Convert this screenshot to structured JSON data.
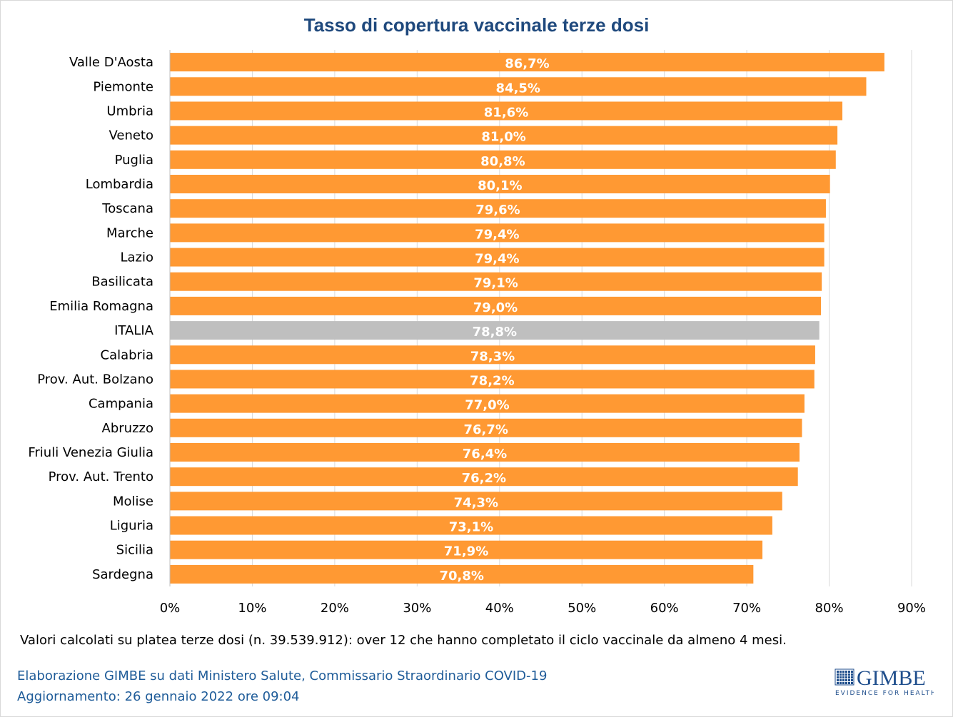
{
  "chart_data": {
    "type": "bar",
    "orientation": "horizontal",
    "title": "Tasso di copertura vaccinale terze dosi",
    "categories": [
      "Valle D'Aosta",
      "Piemonte",
      "Umbria",
      "Veneto",
      "Puglia",
      "Lombardia",
      "Toscana",
      "Marche",
      "Lazio",
      "Basilicata",
      "Emilia Romagna",
      "ITALIA",
      "Calabria",
      "Prov. Aut. Bolzano",
      "Campania",
      "Abruzzo",
      "Friuli Venezia Giulia",
      "Prov. Aut. Trento",
      "Molise",
      "Liguria",
      "Sicilia",
      "Sardegna"
    ],
    "values": [
      86.7,
      84.5,
      81.6,
      81.0,
      80.8,
      80.1,
      79.6,
      79.4,
      79.4,
      79.1,
      79.0,
      78.8,
      78.3,
      78.2,
      77.0,
      76.7,
      76.4,
      76.2,
      74.3,
      73.1,
      71.9,
      70.8
    ],
    "data_labels": [
      "86,7%",
      "84,5%",
      "81,6%",
      "81,0%",
      "80,8%",
      "80,1%",
      "79,6%",
      "79,4%",
      "79,4%",
      "79,1%",
      "79,0%",
      "78,8%",
      "78,3%",
      "78,2%",
      "77,0%",
      "76,7%",
      "76,4%",
      "76,2%",
      "74,3%",
      "73,1%",
      "71,9%",
      "70,8%"
    ],
    "highlight": "ITALIA",
    "xlim": [
      0,
      90
    ],
    "x_ticks": [
      0,
      10,
      20,
      30,
      40,
      50,
      60,
      70,
      80,
      90
    ],
    "x_tick_labels": [
      "0%",
      "10%",
      "20%",
      "30%",
      "40%",
      "50%",
      "60%",
      "70%",
      "80%",
      "90%"
    ],
    "grid": true,
    "colors": {
      "bar": "#ff9933",
      "highlight": "#bfbfbf",
      "grid": "#d9d9d9",
      "title": "#1f497d"
    }
  },
  "footer": {
    "note": "Valori calcolati su platea terze dosi (n. 39.539.912): over 12 che hanno completato il ciclo vaccinale da almeno 4 mesi.",
    "source": "Elaborazione GIMBE su dati Ministero Salute, Commissario Straordinario COVID-19",
    "updated": "Aggiornamento: 26 gennaio 2022 ore 09:04"
  },
  "logo": {
    "name": "GIMBE",
    "tagline": "EVIDENCE FOR HEALTH"
  }
}
